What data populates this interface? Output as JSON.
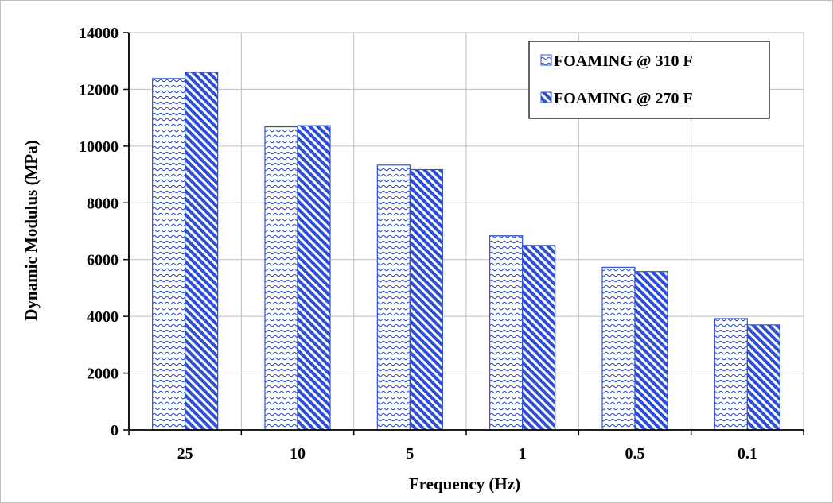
{
  "chart_data": {
    "type": "bar",
    "title": "",
    "xlabel": "Frequency (Hz)",
    "ylabel": "Dynamic Modulus (MPa)",
    "categories": [
      "25",
      "10",
      "5",
      "1",
      "0.5",
      "0.1"
    ],
    "series": [
      {
        "name": "FOAMING @ 310 F",
        "values": [
          12380,
          10680,
          9330,
          6840,
          5730,
          3920
        ],
        "color": "#2e4fd1",
        "pattern": "wave"
      },
      {
        "name": "FOAMING @ 270 F",
        "values": [
          12600,
          10720,
          9170,
          6500,
          5580,
          3700
        ],
        "color": "#2e4fd1",
        "pattern": "diagonal"
      }
    ],
    "ylim": [
      0,
      14000
    ],
    "yticks": [
      "0",
      "2000",
      "4000",
      "6000",
      "8000",
      "10000",
      "12000",
      "14000"
    ],
    "grid": true,
    "legend_position": "top-right"
  }
}
